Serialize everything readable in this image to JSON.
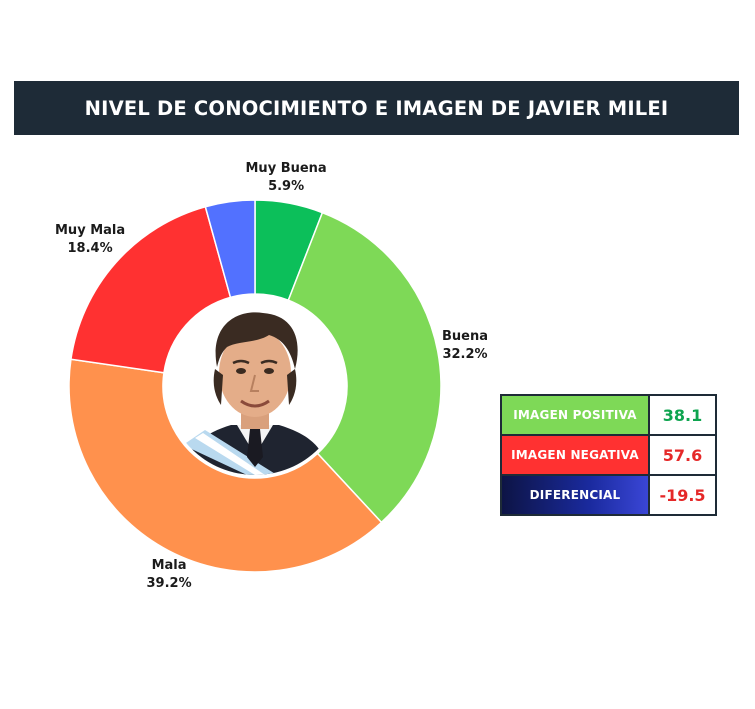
{
  "header": {
    "title": "NIVEL DE CONOCIMIENTO E IMAGEN DE JAVIER MILEI"
  },
  "chart_data": {
    "type": "pie",
    "categories": [
      "Muy Buena",
      "Buena",
      "Mala",
      "Muy Mala",
      ""
    ],
    "values": [
      5.9,
      32.2,
      39.2,
      18.4,
      4.3
    ],
    "value_labels": [
      "5.9%",
      "32.2%",
      "39.2%",
      "18.4%",
      ""
    ],
    "colors": [
      "#0cbf5a",
      "#7ed957",
      "#ff914d",
      "#ff3131",
      "#5271ff"
    ]
  },
  "summary": {
    "rows": [
      {
        "label": "IMAGEN POSITIVA",
        "value": "38.1",
        "label_bg": "#7ed957",
        "value_color": "#0ea44f"
      },
      {
        "label": "IMAGEN NEGATIVA",
        "value": "57.6",
        "label_bg": "#ff3131",
        "value_color": "#e52828"
      },
      {
        "label": "DIFERENCIAL",
        "value": "-19.5",
        "label_bg": "#0d1445",
        "value_color": "#e52828"
      }
    ]
  },
  "photo": {
    "icon": "person-portrait-icon"
  }
}
